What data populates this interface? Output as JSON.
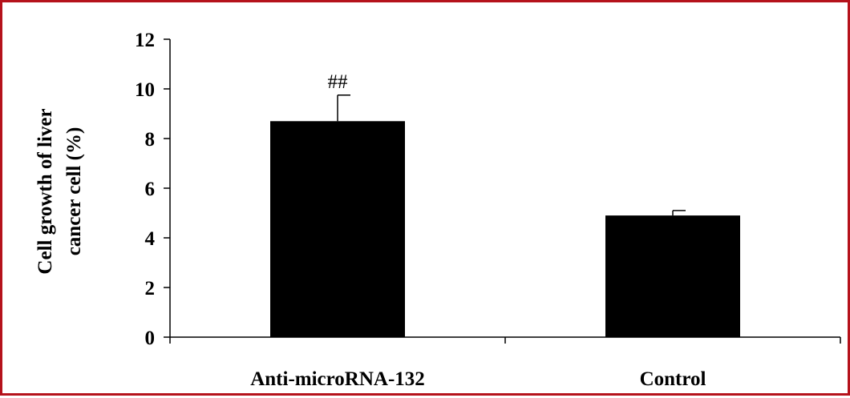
{
  "frame_color": "#b5121b",
  "chart_data": {
    "type": "bar",
    "categories": [
      "Anti-microRNA-132",
      "Control"
    ],
    "values": [
      8.7,
      4.9
    ],
    "errors": [
      1.05,
      0.2
    ],
    "annotations": [
      "##",
      ""
    ],
    "ylabel_lines": [
      "Cell growth of liver",
      "cancer cell (%)"
    ],
    "xlabel": "",
    "title": "",
    "ylim": [
      0,
      12
    ],
    "yticks": [
      0,
      2,
      4,
      6,
      8,
      10,
      12
    ],
    "bar_color": "#000000",
    "grid": false,
    "legend": "none"
  }
}
